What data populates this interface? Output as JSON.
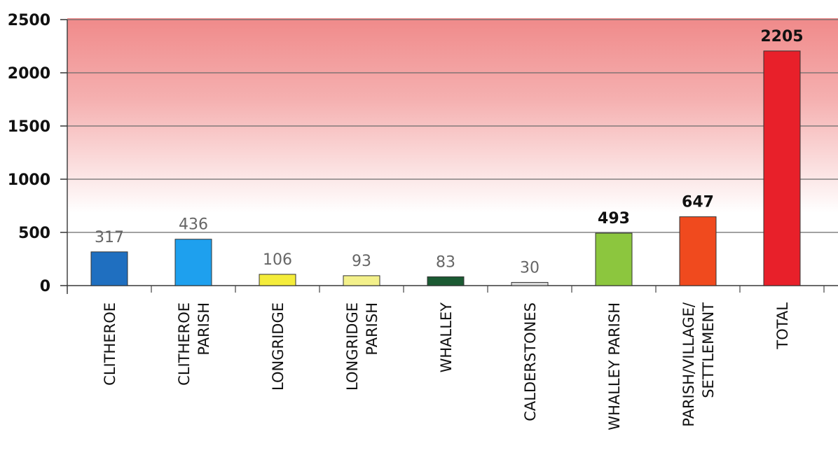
{
  "chart_data": {
    "type": "bar",
    "categories": [
      [
        "CLITHEROE"
      ],
      [
        "CLITHEROE",
        "PARISH"
      ],
      [
        "LONGRIDGE"
      ],
      [
        "LONGRIDGE",
        "PARISH"
      ],
      [
        "WHALLEY"
      ],
      [
        "CALDERSTONES"
      ],
      [
        "WHALLEY PARISH"
      ],
      [
        "PARISH/VILLAGE/",
        "SETTLEMENT"
      ],
      [
        "TOTAL"
      ]
    ],
    "values": [
      317,
      436,
      106,
      93,
      83,
      30,
      493,
      647,
      2205
    ],
    "labels": [
      "317",
      "436",
      "106",
      "93",
      "83",
      "30",
      "493",
      "647",
      "2205"
    ],
    "bar_colors": [
      "#1f6fc0",
      "#1ea0ee",
      "#f4ec3a",
      "#f3f08a",
      "#1b5a33",
      "#d9d9d9",
      "#8cc63e",
      "#f04a1e",
      "#e8202a"
    ],
    "label_colors": [
      "#666666",
      "#666666",
      "#666666",
      "#666666",
      "#666666",
      "#666666",
      "#111111",
      "#111111",
      "#111111"
    ],
    "ylim": [
      0,
      2500
    ],
    "yticks": [
      "0",
      "500",
      "1000",
      "1500",
      "2000",
      "2500"
    ],
    "grid": true,
    "background_gradient": [
      "#f08a8a",
      "#ffffff"
    ]
  }
}
